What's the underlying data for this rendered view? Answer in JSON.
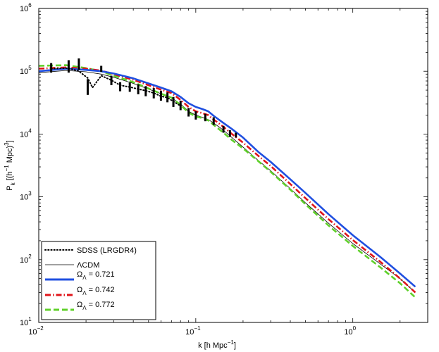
{
  "chart_data": {
    "type": "line",
    "xscale": "log",
    "yscale": "log",
    "xlim": [
      0.01,
      3
    ],
    "ylim": [
      10,
      1000000
    ],
    "xlabel": "k [h Mpc",
    "xlabel_sup": "−1",
    "xlabel_end": "]",
    "ylabel": "P",
    "ylabel_sub": "k",
    "ylabel_mid": " [(h",
    "ylabel_sup1": "−1",
    "ylabel_mid2": " Mpc)",
    "ylabel_sup2": "3",
    "ylabel_end": "]",
    "xticks": [
      {
        "value": 0.01,
        "base": "10",
        "exp": "−2"
      },
      {
        "value": 0.1,
        "base": "10",
        "exp": "−1"
      },
      {
        "value": 1,
        "base": "10",
        "exp": "0"
      }
    ],
    "yticks": [
      {
        "value": 10,
        "base": "10",
        "exp": "1"
      },
      {
        "value": 100,
        "base": "10",
        "exp": "2"
      },
      {
        "value": 1000,
        "base": "10",
        "exp": "3"
      },
      {
        "value": 10000,
        "base": "10",
        "exp": "4"
      },
      {
        "value": 100000,
        "base": "10",
        "exp": "5"
      },
      {
        "value": 1000000,
        "base": "10",
        "exp": "6"
      }
    ],
    "legend_position": "bottom-left",
    "series": [
      {
        "name": "SDSS (LRGDR4)",
        "label": "SDSS (LRGDR4)",
        "style": "dotted",
        "color": "#000000",
        "x": [
          0.012,
          0.0155,
          0.018,
          0.0205,
          0.022,
          0.025,
          0.029,
          0.033,
          0.038,
          0.043,
          0.048,
          0.054,
          0.06,
          0.066,
          0.072,
          0.08
        ],
        "y": [
          110000,
          112000,
          100000,
          78000,
          55000,
          85000,
          72000,
          60000,
          56000,
          52000,
          49000,
          45000,
          40000,
          38000,
          33000,
          28000
        ]
      },
      {
        "name": "ΛCDM",
        "label_prefix": "Λ",
        "label_rest": "CDM",
        "style": "solid-thin",
        "color": "#000000",
        "x": [
          0.01,
          0.015,
          0.02,
          0.025,
          0.03,
          0.04,
          0.05,
          0.06,
          0.07,
          0.08,
          0.09,
          0.1,
          0.11,
          0.12,
          0.13,
          0.15,
          0.17,
          0.2,
          0.25,
          0.3,
          0.4,
          0.5,
          0.7,
          1.0,
          1.5,
          2.0,
          2.5
        ],
        "y": [
          95000,
          103000,
          98000,
          90000,
          80000,
          64000,
          52000,
          44000,
          38000,
          30000,
          23000,
          20000,
          18500,
          17000,
          15000,
          11500,
          8800,
          6200,
          3800,
          2600,
          1350,
          800,
          380,
          180,
          85,
          50,
          30
        ]
      },
      {
        "name": "Ω_Λ = 0.721",
        "label_symbol": "Ω",
        "label_sub": "Λ",
        "label_value": " = 0.721",
        "style": "solid-thick",
        "color": "#1f4fe0",
        "x": [
          0.01,
          0.015,
          0.02,
          0.025,
          0.03,
          0.04,
          0.05,
          0.06,
          0.07,
          0.08,
          0.09,
          0.1,
          0.11,
          0.12,
          0.13,
          0.15,
          0.17,
          0.2,
          0.25,
          0.3,
          0.4,
          0.5,
          0.7,
          1.0,
          1.5,
          2.0,
          2.5
        ],
        "y": [
          100000,
          110000,
          105000,
          100000,
          92000,
          77000,
          64000,
          55000,
          48000,
          39000,
          31000,
          27000,
          25000,
          23000,
          19500,
          15000,
          12000,
          8800,
          5200,
          3600,
          1900,
          1150,
          530,
          245,
          110,
          60,
          37
        ]
      },
      {
        "name": "Ω_Λ = 0.742",
        "label_symbol": "Ω",
        "label_sub": "Λ",
        "label_value": " = 0.742",
        "style": "dash-dot",
        "color": "#e0141a",
        "x": [
          0.01,
          0.015,
          0.02,
          0.025,
          0.03,
          0.04,
          0.05,
          0.06,
          0.07,
          0.08,
          0.09,
          0.1,
          0.11,
          0.12,
          0.13,
          0.15,
          0.17,
          0.2,
          0.25,
          0.3,
          0.4,
          0.5,
          0.7,
          1.0,
          1.5,
          2.0,
          2.5
        ],
        "y": [
          110000,
          115000,
          110000,
          102000,
          90000,
          73000,
          60000,
          51000,
          45000,
          35000,
          27000,
          23000,
          21500,
          20000,
          17000,
          13000,
          10000,
          7300,
          4500,
          3100,
          1600,
          950,
          440,
          205,
          92,
          50,
          30
        ]
      },
      {
        "name": "Ω_Λ = 0.772",
        "label_symbol": "Ω",
        "label_sub": "Λ",
        "label_value": " = 0.772",
        "style": "dashed",
        "color": "#5fd02a",
        "x": [
          0.01,
          0.015,
          0.02,
          0.025,
          0.03,
          0.04,
          0.05,
          0.06,
          0.07,
          0.08,
          0.09,
          0.1,
          0.11,
          0.12,
          0.13,
          0.15,
          0.17,
          0.2,
          0.25,
          0.3,
          0.4,
          0.5,
          0.7,
          1.0,
          1.5,
          2.0,
          2.5
        ],
        "y": [
          122000,
          125000,
          112000,
          100000,
          85000,
          67000,
          53000,
          44000,
          38000,
          29000,
          22000,
          19000,
          18000,
          16500,
          14000,
          10500,
          8000,
          5900,
          3700,
          2500,
          1300,
          760,
          350,
          165,
          75,
          42,
          25
        ]
      }
    ],
    "errorbars": {
      "x": [
        0.012,
        0.0155,
        0.018,
        0.0205,
        0.025,
        0.029,
        0.033,
        0.038,
        0.043,
        0.048,
        0.054,
        0.06,
        0.066,
        0.072,
        0.08,
        0.09,
        0.1,
        0.115,
        0.13,
        0.15,
        0.165,
        0.18
      ],
      "low": [
        95000,
        95000,
        105000,
        42000,
        98000,
        60000,
        48000,
        47000,
        43000,
        40000,
        37000,
        34000,
        32000,
        27000,
        24000,
        19000,
        17000,
        16000,
        14000,
        10500,
        9000,
        8800
      ],
      "high": [
        135000,
        150000,
        160000,
        75000,
        122000,
        85000,
        67000,
        66000,
        62000,
        58000,
        54000,
        49000,
        46000,
        39000,
        34000,
        26000,
        23000,
        21000,
        18500,
        13500,
        11500,
        10500
      ]
    }
  }
}
